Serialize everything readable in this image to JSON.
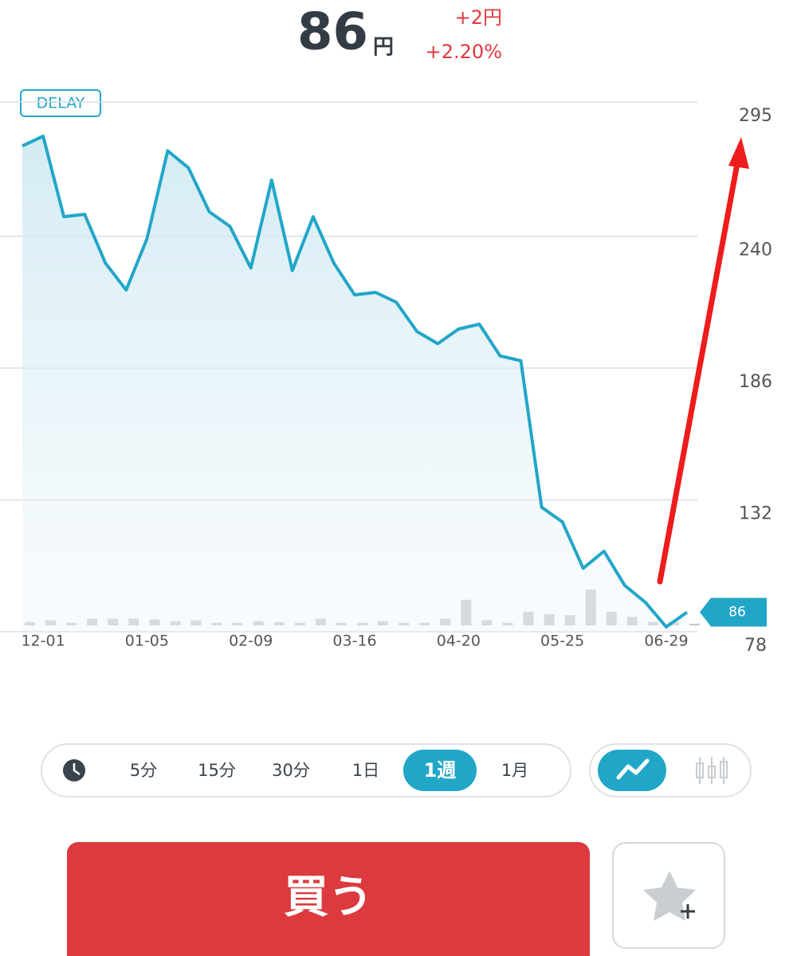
{
  "header": {
    "price": "86",
    "unit": "円",
    "change": "+2円",
    "change_pct": "+2.20%"
  },
  "chart_data": {
    "type": "line",
    "badge": "DELAY",
    "color": "#22a6c8",
    "categories": [
      null,
      "12-01",
      null,
      null,
      null,
      null,
      "01-05",
      null,
      null,
      null,
      null,
      "02-09",
      null,
      null,
      null,
      null,
      "03-16",
      null,
      null,
      null,
      null,
      "04-20",
      null,
      null,
      null,
      null,
      "05-25",
      null,
      null,
      null,
      null,
      "06-29",
      null
    ],
    "values": [
      277,
      281,
      248,
      249,
      229,
      218,
      239,
      275,
      268,
      250,
      244,
      227,
      263,
      226,
      248,
      229,
      216,
      217,
      213,
      201,
      196,
      202,
      204,
      191,
      189,
      129,
      123,
      104,
      111,
      97,
      90,
      80,
      86
    ],
    "volume": [
      4,
      6,
      3,
      8,
      8,
      8,
      7,
      5,
      6,
      3,
      3,
      5,
      4,
      3,
      8,
      3,
      3,
      5,
      3,
      3,
      8,
      30,
      6,
      3,
      16,
      13,
      12,
      42,
      16,
      10,
      4,
      4,
      2
    ],
    "volume_color": "#c8c8c8",
    "ylim": [
      78,
      295
    ],
    "yticks": [
      78,
      132,
      186,
      240,
      295
    ],
    "grid": true
  },
  "controls": {
    "timeframes": [
      "5分",
      "15分",
      "30分",
      "1日",
      "1週",
      "1月"
    ],
    "selected": 4,
    "buy": "買う"
  }
}
